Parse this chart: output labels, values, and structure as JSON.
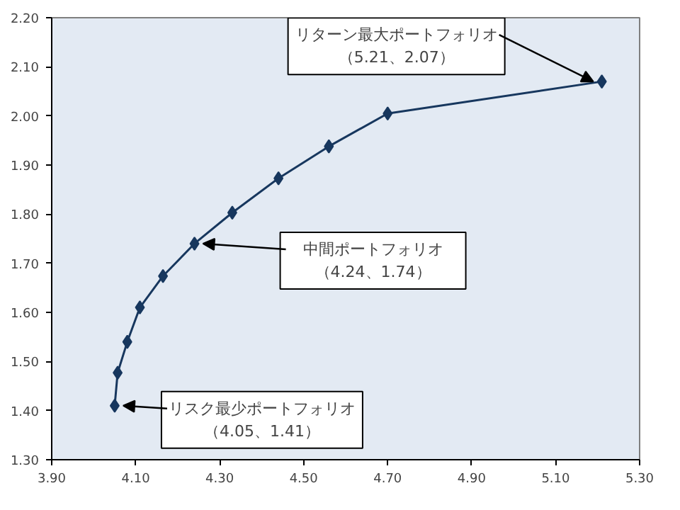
{
  "chart_data": {
    "type": "line",
    "x": [
      4.05,
      4.057,
      4.08,
      4.11,
      4.165,
      4.24,
      4.33,
      4.44,
      4.56,
      4.7,
      5.21
    ],
    "series": [
      {
        "color": "#17375e",
        "values": [
          1.41,
          1.477,
          1.54,
          1.61,
          1.674,
          1.74,
          1.803,
          1.873,
          1.938,
          2.005,
          2.07
        ]
      }
    ],
    "marker": "diamond",
    "xlim": [
      3.9,
      5.3
    ],
    "ylim": [
      1.3,
      2.2
    ],
    "xticks": [
      {
        "value": 3.9,
        "label": "3.90"
      },
      {
        "value": 4.1,
        "label": "4.10"
      },
      {
        "value": 4.3,
        "label": "4.30"
      },
      {
        "value": 4.5,
        "label": "4.50"
      },
      {
        "value": 4.7,
        "label": "4.70"
      },
      {
        "value": 4.9,
        "label": "4.90"
      },
      {
        "value": 5.1,
        "label": "5.10"
      },
      {
        "value": 5.3,
        "label": "5.30"
      }
    ],
    "yticks": [
      {
        "value": 1.3,
        "label": "1.30"
      },
      {
        "value": 1.4,
        "label": "1.40"
      },
      {
        "value": 1.5,
        "label": "1.50"
      },
      {
        "value": 1.6,
        "label": "1.60"
      },
      {
        "value": 1.7,
        "label": "1.70"
      },
      {
        "value": 1.8,
        "label": "1.80"
      },
      {
        "value": 1.9,
        "label": "1.90"
      },
      {
        "value": 2.0,
        "label": "2.00"
      },
      {
        "value": 2.1,
        "label": "2.10"
      },
      {
        "value": 2.2,
        "label": "2.20"
      }
    ],
    "grid": false,
    "annotations": [
      {
        "text": "リターン最大ポートフォリオ",
        "x": 5.21,
        "y": 2.07
      },
      "（5.21、2.07）",
      {
        "text": "中間ポートフォリオ",
        "x": 4.24,
        "y": 1.74
      },
      "（4.24、1.74）",
      {
        "text": "リスク最少ポートフォリオ",
        "x": 4.05,
        "y": 1.41
      },
      "（4.05、1.41）"
    ]
  }
}
